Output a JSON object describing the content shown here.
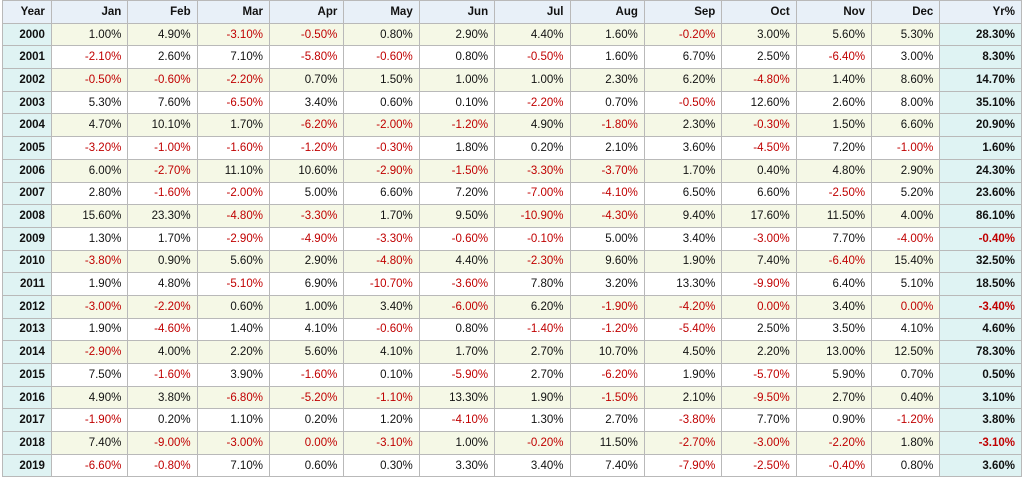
{
  "headers": [
    "Year",
    "Jan",
    "Feb",
    "Mar",
    "Apr",
    "May",
    "Jun",
    "Jul",
    "Aug",
    "Sep",
    "Oct",
    "Nov",
    "Dec",
    "Yr%"
  ],
  "rows": [
    {
      "year": "2000",
      "months": [
        "1.00%",
        "4.90%",
        "-3.10%",
        "-0.50%",
        "0.80%",
        "2.90%",
        "4.40%",
        "1.60%",
        "-0.20%",
        "3.00%",
        "5.60%",
        "5.30%"
      ],
      "total": "28.30%"
    },
    {
      "year": "2001",
      "months": [
        "-2.10%",
        "2.60%",
        "7.10%",
        "-5.80%",
        "-0.60%",
        "0.80%",
        "-0.50%",
        "1.60%",
        "6.70%",
        "2.50%",
        "-6.40%",
        "3.00%"
      ],
      "total": "8.30%"
    },
    {
      "year": "2002",
      "months": [
        "-0.50%",
        "-0.60%",
        "-2.20%",
        "0.70%",
        "1.50%",
        "1.00%",
        "1.00%",
        "2.30%",
        "6.20%",
        "-4.80%",
        "1.40%",
        "8.60%"
      ],
      "total": "14.70%"
    },
    {
      "year": "2003",
      "months": [
        "5.30%",
        "7.60%",
        "-6.50%",
        "3.40%",
        "0.60%",
        "0.10%",
        "-2.20%",
        "0.70%",
        "-0.50%",
        "12.60%",
        "2.60%",
        "8.00%"
      ],
      "total": "35.10%"
    },
    {
      "year": "2004",
      "months": [
        "4.70%",
        "10.10%",
        "1.70%",
        "-6.20%",
        "-2.00%",
        "-1.20%",
        "4.90%",
        "-1.80%",
        "2.30%",
        "-0.30%",
        "1.50%",
        "6.60%"
      ],
      "total": "20.90%"
    },
    {
      "year": "2005",
      "months": [
        "-3.20%",
        "-1.00%",
        "-1.60%",
        "-1.20%",
        "-0.30%",
        "1.80%",
        "0.20%",
        "2.10%",
        "3.60%",
        "-4.50%",
        "7.20%",
        "-1.00%"
      ],
      "total": "1.60%"
    },
    {
      "year": "2006",
      "months": [
        "6.00%",
        "-2.70%",
        "11.10%",
        "10.60%",
        "-2.90%",
        "-1.50%",
        "-3.30%",
        "-3.70%",
        "1.70%",
        "0.40%",
        "4.80%",
        "2.90%"
      ],
      "total": "24.30%"
    },
    {
      "year": "2007",
      "months": [
        "2.80%",
        "-1.60%",
        "-2.00%",
        "5.00%",
        "6.60%",
        "7.20%",
        "-7.00%",
        "-4.10%",
        "6.50%",
        "6.60%",
        "-2.50%",
        "5.20%"
      ],
      "total": "23.60%"
    },
    {
      "year": "2008",
      "months": [
        "15.60%",
        "23.30%",
        "-4.80%",
        "-3.30%",
        "1.70%",
        "9.50%",
        "-10.90%",
        "-4.30%",
        "9.40%",
        "17.60%",
        "11.50%",
        "4.00%"
      ],
      "total": "86.10%"
    },
    {
      "year": "2009",
      "months": [
        "1.30%",
        "1.70%",
        "-2.90%",
        "-4.90%",
        "-3.30%",
        "-0.60%",
        "-0.10%",
        "5.00%",
        "3.40%",
        "-3.00%",
        "7.70%",
        "-4.00%"
      ],
      "total": "-0.40%"
    },
    {
      "year": "2010",
      "months": [
        "-3.80%",
        "0.90%",
        "5.60%",
        "2.90%",
        "-4.80%",
        "4.40%",
        "-2.30%",
        "9.60%",
        "1.90%",
        "7.40%",
        "-6.40%",
        "15.40%"
      ],
      "total": "32.50%"
    },
    {
      "year": "2011",
      "months": [
        "1.90%",
        "4.80%",
        "-5.10%",
        "6.90%",
        "-10.70%",
        "-3.60%",
        "7.80%",
        "3.20%",
        "13.30%",
        "-9.90%",
        "6.40%",
        "5.10%"
      ],
      "total": "18.50%"
    },
    {
      "year": "2012",
      "months": [
        "-3.00%",
        "-2.20%",
        "0.60%",
        "1.00%",
        "3.40%",
        "-6.00%",
        "6.20%",
        "-1.90%",
        "-4.20%",
        "0.00%",
        "3.40%",
        "0.00%"
      ],
      "total": "-3.40%"
    },
    {
      "year": "2013",
      "months": [
        "1.90%",
        "-4.60%",
        "1.40%",
        "4.10%",
        "-0.60%",
        "0.80%",
        "-1.40%",
        "-1.20%",
        "-5.40%",
        "2.50%",
        "3.50%",
        "4.10%"
      ],
      "total": "4.60%"
    },
    {
      "year": "2014",
      "months": [
        "-2.90%",
        "4.00%",
        "2.20%",
        "5.60%",
        "4.10%",
        "1.70%",
        "2.70%",
        "10.70%",
        "4.50%",
        "2.20%",
        "13.00%",
        "12.50%"
      ],
      "total": "78.30%"
    },
    {
      "year": "2015",
      "months": [
        "7.50%",
        "-1.60%",
        "3.90%",
        "-1.60%",
        "0.10%",
        "-5.90%",
        "2.70%",
        "-6.20%",
        "1.90%",
        "-5.70%",
        "5.90%",
        "0.70%"
      ],
      "total": "0.50%"
    },
    {
      "year": "2016",
      "months": [
        "4.90%",
        "3.80%",
        "-6.80%",
        "-5.20%",
        "-1.10%",
        "13.30%",
        "1.90%",
        "-1.50%",
        "2.10%",
        "-9.50%",
        "2.70%",
        "0.40%"
      ],
      "total": "3.10%"
    },
    {
      "year": "2017",
      "months": [
        "-1.90%",
        "0.20%",
        "1.10%",
        "0.20%",
        "1.20%",
        "-4.10%",
        "1.30%",
        "2.70%",
        "-3.80%",
        "7.70%",
        "0.90%",
        "-1.20%"
      ],
      "total": "3.80%"
    },
    {
      "year": "2018",
      "months": [
        "7.40%",
        "-9.00%",
        "-3.00%",
        "0.00%",
        "-3.10%",
        "1.00%",
        "-0.20%",
        "11.50%",
        "-2.70%",
        "-3.00%",
        "-2.20%",
        "1.80%"
      ],
      "total": "-3.10%"
    },
    {
      "year": "2019",
      "months": [
        "-6.60%",
        "-0.80%",
        "7.10%",
        "0.60%",
        "0.30%",
        "3.30%",
        "3.40%",
        "7.40%",
        "-7.90%",
        "-2.50%",
        "-0.40%",
        "0.80%"
      ],
      "total": "3.60%"
    }
  ],
  "negative_zero_cells": [
    "2012.Oct",
    "2012.Dec",
    "2018.Apr"
  ],
  "colors": {
    "negative": "#c00000",
    "positive": "#111111",
    "year_bg": "#dff3f3",
    "odd_row_bg": "#f5f8e6"
  }
}
